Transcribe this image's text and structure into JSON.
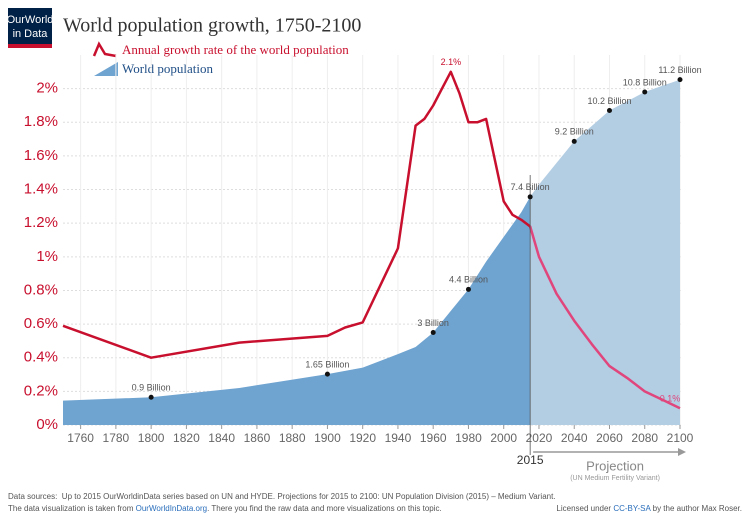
{
  "chart_data": {
    "type": "area-line",
    "logo": [
      "OurWorld",
      "in Data"
    ],
    "title": "World population growth, 1750-2100",
    "xlim": [
      1750,
      2100
    ],
    "xticks": [
      1760,
      1780,
      1800,
      1820,
      1840,
      1860,
      1880,
      1900,
      1920,
      1940,
      1960,
      1980,
      2000,
      2020,
      2040,
      2060,
      2080,
      2100
    ],
    "ylim": [
      0,
      2.2
    ],
    "yticks": [
      {
        "value": 0,
        "label": "0%"
      },
      {
        "value": 0.2,
        "label": "0.2%"
      },
      {
        "value": 0.4,
        "label": "0.4%"
      },
      {
        "value": 0.6,
        "label": "0.6%"
      },
      {
        "value": 0.8,
        "label": "0.8%"
      },
      {
        "value": 1,
        "label": "1%"
      },
      {
        "value": 1.2,
        "label": "1.2%"
      },
      {
        "value": 1.4,
        "label": "1.4%"
      },
      {
        "value": 1.6,
        "label": "1.6%"
      },
      {
        "value": 1.8,
        "label": "1.8%"
      },
      {
        "value": 2,
        "label": "2%"
      }
    ],
    "y2lim": [
      0,
      12
    ],
    "grid": true,
    "projection": {
      "start": 2015,
      "label": "Projection",
      "note": "(UN Medium Fertility Variant)"
    },
    "series": [
      {
        "name": "World population",
        "axis": "y2",
        "color": "#6fa3d0",
        "projection_color": "#b3cde3",
        "x": [
          1750,
          1800,
          1850,
          1900,
          1920,
          1940,
          1950,
          1960,
          1970,
          1980,
          1990,
          2000,
          2010,
          2015,
          2020,
          2030,
          2040,
          2050,
          2060,
          2070,
          2080,
          2090,
          2100
        ],
        "values": [
          0.79,
          0.9,
          1.2,
          1.65,
          1.86,
          2.3,
          2.53,
          3.0,
          3.7,
          4.4,
          5.3,
          6.1,
          6.9,
          7.4,
          7.8,
          8.5,
          9.2,
          9.7,
          10.2,
          10.5,
          10.8,
          11.0,
          11.2
        ],
        "value_labels": [
          null,
          "0.9 Billion",
          null,
          "1.65 Billion",
          null,
          null,
          null,
          "3 Billion",
          null,
          "4.4 Billion",
          null,
          null,
          null,
          "7.4 Billion",
          null,
          null,
          "9.2 Billion",
          null,
          "10.2 Billion",
          null,
          "10.8 Billion",
          null,
          "11.2 Billion"
        ]
      },
      {
        "name": "Annual growth rate of the world population",
        "axis": "y",
        "color": "#c8102e",
        "projection_color": "#e0457b",
        "x": [
          1750,
          1800,
          1850,
          1900,
          1910,
          1920,
          1940,
          1950,
          1955,
          1960,
          1965,
          1970,
          1975,
          1980,
          1985,
          1990,
          2000,
          2005,
          2010,
          2015,
          2020,
          2030,
          2040,
          2050,
          2060,
          2070,
          2080,
          2090,
          2100
        ],
        "values": [
          0.59,
          0.4,
          0.49,
          0.53,
          0.58,
          0.61,
          1.05,
          1.78,
          1.82,
          1.9,
          2.0,
          2.1,
          1.97,
          1.8,
          1.8,
          1.82,
          1.33,
          1.25,
          1.22,
          1.18,
          1.0,
          0.78,
          0.62,
          0.48,
          0.35,
          0.28,
          0.2,
          0.15,
          0.1
        ],
        "value_labels": [
          null,
          null,
          null,
          null,
          null,
          null,
          null,
          null,
          null,
          null,
          null,
          "2.1%",
          null,
          null,
          null,
          null,
          null,
          null,
          null,
          null,
          null,
          null,
          null,
          null,
          null,
          null,
          null,
          null,
          "0.1%"
        ]
      }
    ],
    "footer": {
      "sources": "Data sources:  Up to 2015 OurWorldinData series based on UN and HYDE. Projections for 2015 to 2100: UN Population Division (2015) – Medium Variant.",
      "note": [
        "The data visualization is taken from ",
        "OurWorldInData.org",
        ". There you find the raw data and more visualizations on this topic."
      ],
      "license": [
        "Licensed under ",
        "CC-BY-SA",
        " by the author Max Roser."
      ]
    }
  }
}
